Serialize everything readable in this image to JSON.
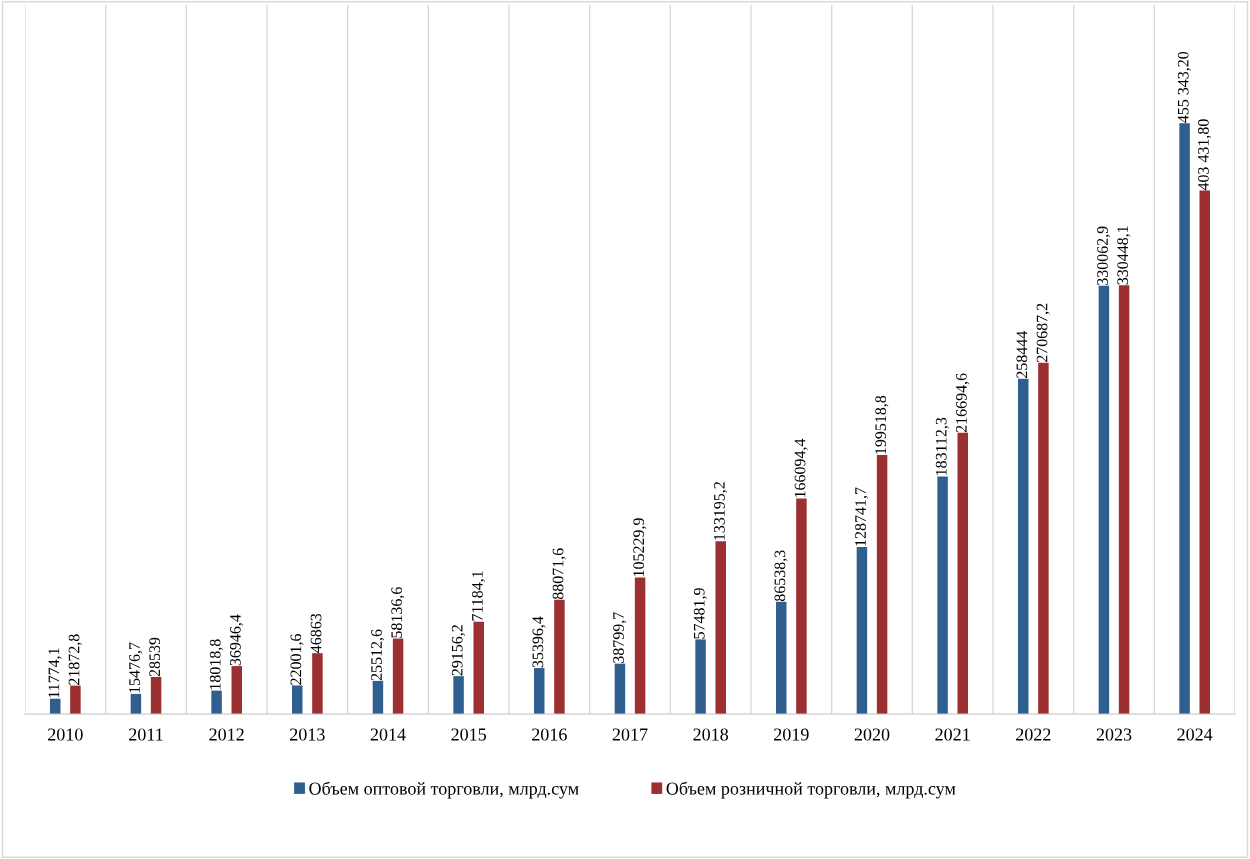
{
  "chart_data": {
    "type": "bar",
    "categories": [
      "2010",
      "2011",
      "2012",
      "2013",
      "2014",
      "2015",
      "2016",
      "2017",
      "2018",
      "2019",
      "2020",
      "2021",
      "2022",
      "2023",
      "2024"
    ],
    "series": [
      {
        "name": "Объем оптовой торговли, млрд.сум",
        "color": "#2f5f8f",
        "values": [
          11774.1,
          15476.7,
          18018.8,
          22001.6,
          25512.6,
          29156.2,
          35396.4,
          38799.7,
          57481.9,
          86538.3,
          128741.7,
          183112.3,
          258444,
          330062.9,
          455343.2
        ],
        "value_labels": [
          "11774,1",
          "15476,7",
          "18018,8",
          "22001,6",
          "25512,6",
          "29156,2",
          "35396,4",
          "38799,7",
          "57481,9",
          "86538,3",
          "128741,7",
          "183112,3",
          "258444",
          "330062,9",
          "455 343,20"
        ]
      },
      {
        "name": "Объем розничной торговли, млрд.сум",
        "color": "#9c2f2f",
        "values": [
          21872.8,
          28539,
          36946.4,
          46863,
          58136.6,
          71184.1,
          88071.6,
          105229.9,
          133195.2,
          166094.4,
          199518.8,
          216694.6,
          270687.2,
          330448.1,
          403431.8
        ],
        "value_labels": [
          "21872,8",
          "28539",
          "36946,4",
          "46863",
          "58136,6",
          "71184,1",
          "88071,6",
          "105229,9",
          "133195,2",
          "166094,4",
          "199518,8",
          "216694,6",
          "270687,2",
          "330448,1",
          "403 431,80"
        ]
      }
    ],
    "grid": "x",
    "legend": "bottom"
  }
}
